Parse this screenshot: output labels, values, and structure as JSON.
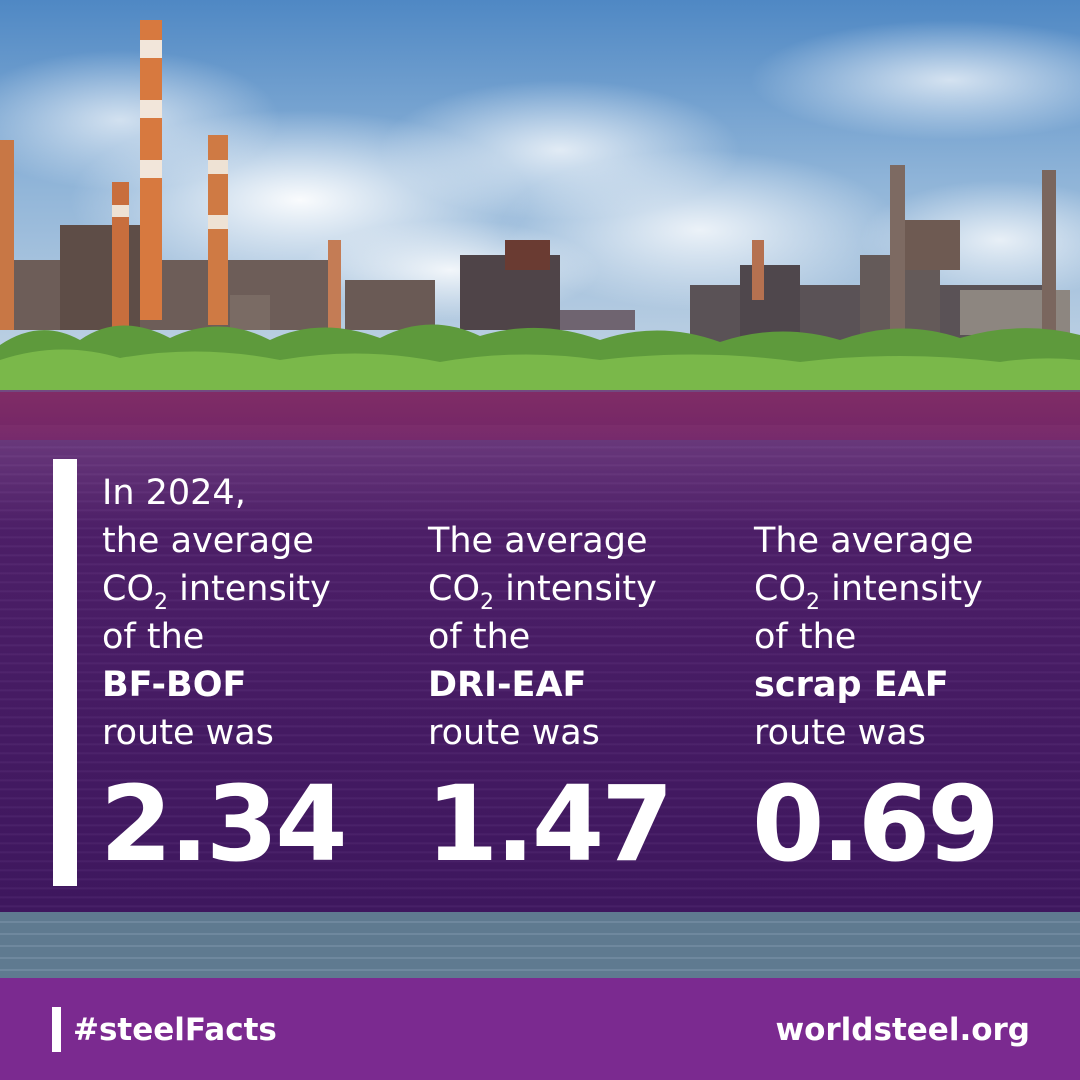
{
  "columns": [
    {
      "intro": "In 2024,",
      "line1": "the average",
      "co2_prefix": "CO",
      "co2_sub": "2",
      "co2_rest": " intensity",
      "of_the": "of the",
      "route_name": "BF-BOF",
      "route_was": "route was",
      "value": "2.34"
    },
    {
      "line1": "The average",
      "co2_prefix": "CO",
      "co2_sub": "2",
      "co2_rest": " intensity",
      "of_the": "of the",
      "route_name": "DRI-EAF",
      "route_was": "route was",
      "value": "1.47"
    },
    {
      "line1": "The average",
      "co2_prefix": "CO",
      "co2_sub": "2",
      "co2_rest": " intensity",
      "of_the": "of the",
      "route_name": "scrap EAF",
      "route_was": "route was",
      "value": "0.69"
    }
  ],
  "footer": {
    "hashtag": "#steelFacts",
    "website": "worldsteel.org"
  },
  "colors": {
    "footer_bg": "#7b2a90",
    "overlay": "#4a1460",
    "text": "#ffffff"
  },
  "photo": {
    "icon": "industrial-skyline-photo"
  }
}
